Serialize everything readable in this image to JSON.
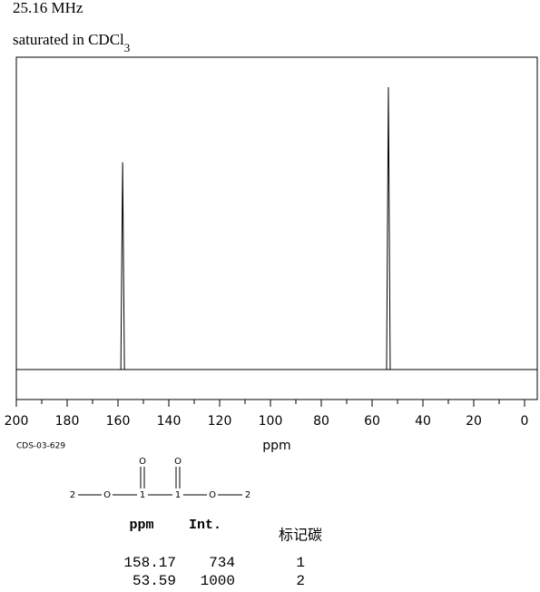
{
  "chart_data": {
    "type": "spectrum",
    "frequency": "25.16 MHz",
    "solvent_text": "saturated in CDCl",
    "solvent_subscript": "3",
    "sample_id": "CDS-03-629",
    "x_label": "ppm",
    "x": [
      158.17,
      53.59
    ],
    "values": [
      734,
      1000
    ],
    "color": "#000000",
    "xlim": [
      200,
      -5
    ],
    "ylim": [
      -106,
      1106
    ],
    "xticks": [
      200,
      180,
      160,
      140,
      120,
      100,
      80,
      60,
      40,
      20,
      0
    ],
    "xticks_minor": [
      190,
      170,
      150,
      130,
      110,
      90,
      70,
      50,
      30,
      10
    ]
  },
  "structure": {
    "atoms": [
      "2",
      "O",
      "1",
      "1",
      "O",
      "2"
    ],
    "carbonyl_oxygens": [
      "O",
      "O"
    ]
  },
  "table": {
    "headers": [
      "ppm",
      "Int.",
      "标记碳"
    ],
    "rows": [
      [
        158.17,
        734,
        1
      ],
      [
        53.59,
        1000,
        2
      ]
    ]
  }
}
